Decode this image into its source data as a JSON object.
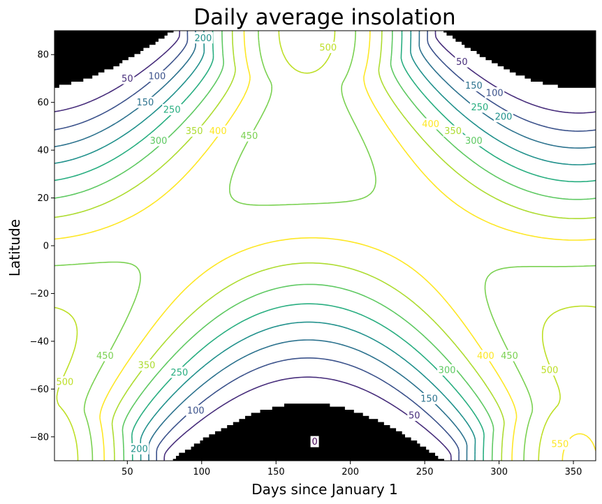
{
  "chart_data": {
    "type": "contour",
    "title": "Daily average insolation",
    "xlabel": "Days since January 1",
    "ylabel": "Latitude",
    "xlim": [
      1,
      365
    ],
    "ylim": [
      -90,
      90
    ],
    "xticks": [
      50,
      100,
      150,
      200,
      250,
      300,
      350
    ],
    "yticks": [
      -80,
      -60,
      -40,
      -20,
      0,
      20,
      40,
      60,
      80
    ],
    "levels": [
      0,
      50,
      100,
      150,
      200,
      250,
      300,
      350,
      400,
      450,
      500,
      550
    ],
    "polar_night_fill": "#000000",
    "colormap": "viridis",
    "level_colors": {
      "0": "#440154",
      "50": "#472d7b",
      "100": "#3b528b",
      "150": "#2c728e",
      "200": "#21918c",
      "250": "#28ae80",
      "300": "#5ec962",
      "350": "#addc30",
      "400": "#fde725",
      "450": "#7ad151",
      "500": "#bddf26",
      "550": "#fde725"
    },
    "contour_labels": [
      {
        "text": "0",
        "day": 176,
        "lat": -82
      },
      {
        "text": "50",
        "day": 50,
        "lat": 70
      },
      {
        "text": "100",
        "day": 70,
        "lat": 71
      },
      {
        "text": "150",
        "day": 62,
        "lat": 60
      },
      {
        "text": "250",
        "day": 80,
        "lat": 57
      },
      {
        "text": "300",
        "day": 71,
        "lat": 44
      },
      {
        "text": "350",
        "day": 95,
        "lat": 48
      },
      {
        "text": "400",
        "day": 111,
        "lat": 48
      },
      {
        "text": "450",
        "day": 132,
        "lat": 46
      },
      {
        "text": "500",
        "day": 185,
        "lat": 83
      },
      {
        "text": "200",
        "day": 101,
        "lat": 87
      },
      {
        "text": "50",
        "day": 275,
        "lat": 77
      },
      {
        "text": "150",
        "day": 283,
        "lat": 67
      },
      {
        "text": "100",
        "day": 297,
        "lat": 64
      },
      {
        "text": "250",
        "day": 287,
        "lat": 58
      },
      {
        "text": "200",
        "day": 303,
        "lat": 54
      },
      {
        "text": "400",
        "day": 254,
        "lat": 51
      },
      {
        "text": "350",
        "day": 269,
        "lat": 48
      },
      {
        "text": "300",
        "day": 283,
        "lat": 44
      },
      {
        "text": "450",
        "day": 35,
        "lat": -46
      },
      {
        "text": "500",
        "day": 8,
        "lat": -57
      },
      {
        "text": "350",
        "day": 63,
        "lat": -50
      },
      {
        "text": "250",
        "day": 85,
        "lat": -53
      },
      {
        "text": "100",
        "day": 96,
        "lat": -69
      },
      {
        "text": "200",
        "day": 58,
        "lat": -85
      },
      {
        "text": "300",
        "day": 265,
        "lat": -52
      },
      {
        "text": "150",
        "day": 253,
        "lat": -64
      },
      {
        "text": "50",
        "day": 243,
        "lat": -71
      },
      {
        "text": "400",
        "day": 291,
        "lat": -46
      },
      {
        "text": "450",
        "day": 307,
        "lat": -46
      },
      {
        "text": "500",
        "day": 334,
        "lat": -52
      },
      {
        "text": "550",
        "day": 341,
        "lat": -83
      }
    ]
  }
}
